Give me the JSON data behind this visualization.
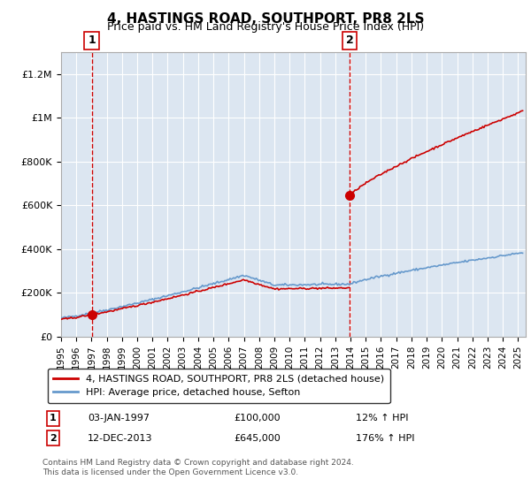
{
  "title": "4, HASTINGS ROAD, SOUTHPORT, PR8 2LS",
  "subtitle": "Price paid vs. HM Land Registry's House Price Index (HPI)",
  "x_start": 1995.0,
  "x_end": 2025.5,
  "y_min": 0,
  "y_max": 1300000,
  "y_ticks": [
    0,
    200000,
    400000,
    600000,
    800000,
    1000000,
    1200000
  ],
  "y_tick_labels": [
    "£0",
    "£200K",
    "£400K",
    "£600K",
    "£800K",
    "£1M",
    "£1.2M"
  ],
  "x_ticks": [
    1995,
    1996,
    1997,
    1998,
    1999,
    2000,
    2001,
    2002,
    2003,
    2004,
    2005,
    2006,
    2007,
    2008,
    2009,
    2010,
    2011,
    2012,
    2013,
    2014,
    2015,
    2016,
    2017,
    2018,
    2019,
    2020,
    2021,
    2022,
    2023,
    2024,
    2025
  ],
  "sale1_x": 1997.01,
  "sale1_y": 100000,
  "sale1_label": "1",
  "sale2_x": 2013.95,
  "sale2_y": 645000,
  "sale2_label": "2",
  "hpi_color": "#6699cc",
  "price_color": "#cc0000",
  "bg_color": "#dce6f1",
  "grid_color": "#ffffff",
  "legend_house_label": "4, HASTINGS ROAD, SOUTHPORT, PR8 2LS (detached house)",
  "legend_hpi_label": "HPI: Average price, detached house, Sefton",
  "annotation1_label": "1",
  "annotation1_date": "03-JAN-1997",
  "annotation1_price": "£100,000",
  "annotation1_hpi": "12% ↑ HPI",
  "annotation2_label": "2",
  "annotation2_date": "12-DEC-2013",
  "annotation2_price": "£645,000",
  "annotation2_hpi": "176% ↑ HPI",
  "footer_line1": "Contains HM Land Registry data © Crown copyright and database right 2024.",
  "footer_line2": "This data is licensed under the Open Government Licence v3.0."
}
